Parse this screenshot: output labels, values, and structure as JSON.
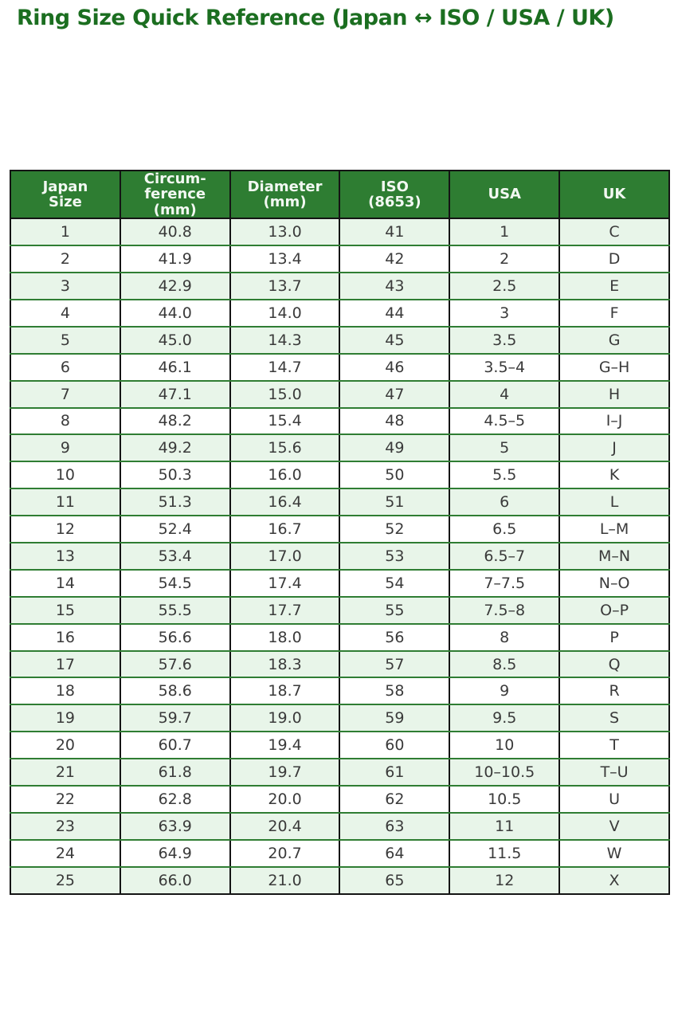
{
  "title": "Ring Size Quick Reference (Japan ↔ ISO / USA / UK)",
  "colors": {
    "title_green": "#1b6e20",
    "header_bg": "#2e7d32",
    "header_text": "#f2f8f2",
    "row_alt_bg": "#e8f5e9",
    "row_bg": "#ffffff",
    "grid_vertical": "#141414",
    "grid_horizontal": "#2f7d33",
    "body_text": "#3a3a3a"
  },
  "chart_data": {
    "type": "table",
    "title": "Ring Size Quick Reference (Japan ↔ ISO / USA / UK)",
    "columns": [
      "Japan\nSize",
      "Circum-\nference\n(mm)",
      "Diameter\n(mm)",
      "ISO\n(8653)",
      "USA",
      "UK"
    ],
    "rows": [
      [
        "1",
        "40.8",
        "13.0",
        "41",
        "1",
        "C"
      ],
      [
        "2",
        "41.9",
        "13.4",
        "42",
        "2",
        "D"
      ],
      [
        "3",
        "42.9",
        "13.7",
        "43",
        "2.5",
        "E"
      ],
      [
        "4",
        "44.0",
        "14.0",
        "44",
        "3",
        "F"
      ],
      [
        "5",
        "45.0",
        "14.3",
        "45",
        "3.5",
        "G"
      ],
      [
        "6",
        "46.1",
        "14.7",
        "46",
        "3.5–4",
        "G–H"
      ],
      [
        "7",
        "47.1",
        "15.0",
        "47",
        "4",
        "H"
      ],
      [
        "8",
        "48.2",
        "15.4",
        "48",
        "4.5–5",
        "I–J"
      ],
      [
        "9",
        "49.2",
        "15.6",
        "49",
        "5",
        "J"
      ],
      [
        "10",
        "50.3",
        "16.0",
        "50",
        "5.5",
        "K"
      ],
      [
        "11",
        "51.3",
        "16.4",
        "51",
        "6",
        "L"
      ],
      [
        "12",
        "52.4",
        "16.7",
        "52",
        "6.5",
        "L–M"
      ],
      [
        "13",
        "53.4",
        "17.0",
        "53",
        "6.5–7",
        "M–N"
      ],
      [
        "14",
        "54.5",
        "17.4",
        "54",
        "7–7.5",
        "N–O"
      ],
      [
        "15",
        "55.5",
        "17.7",
        "55",
        "7.5–8",
        "O–P"
      ],
      [
        "16",
        "56.6",
        "18.0",
        "56",
        "8",
        "P"
      ],
      [
        "17",
        "57.6",
        "18.3",
        "57",
        "8.5",
        "Q"
      ],
      [
        "18",
        "58.6",
        "18.7",
        "58",
        "9",
        "R"
      ],
      [
        "19",
        "59.7",
        "19.0",
        "59",
        "9.5",
        "S"
      ],
      [
        "20",
        "60.7",
        "19.4",
        "60",
        "10",
        "T"
      ],
      [
        "21",
        "61.8",
        "19.7",
        "61",
        "10–10.5",
        "T–U"
      ],
      [
        "22",
        "62.8",
        "20.0",
        "62",
        "10.5",
        "U"
      ],
      [
        "23",
        "63.9",
        "20.4",
        "63",
        "11",
        "V"
      ],
      [
        "24",
        "64.9",
        "20.7",
        "64",
        "11.5",
        "W"
      ],
      [
        "25",
        "66.0",
        "21.0",
        "65",
        "12",
        "X"
      ]
    ]
  }
}
